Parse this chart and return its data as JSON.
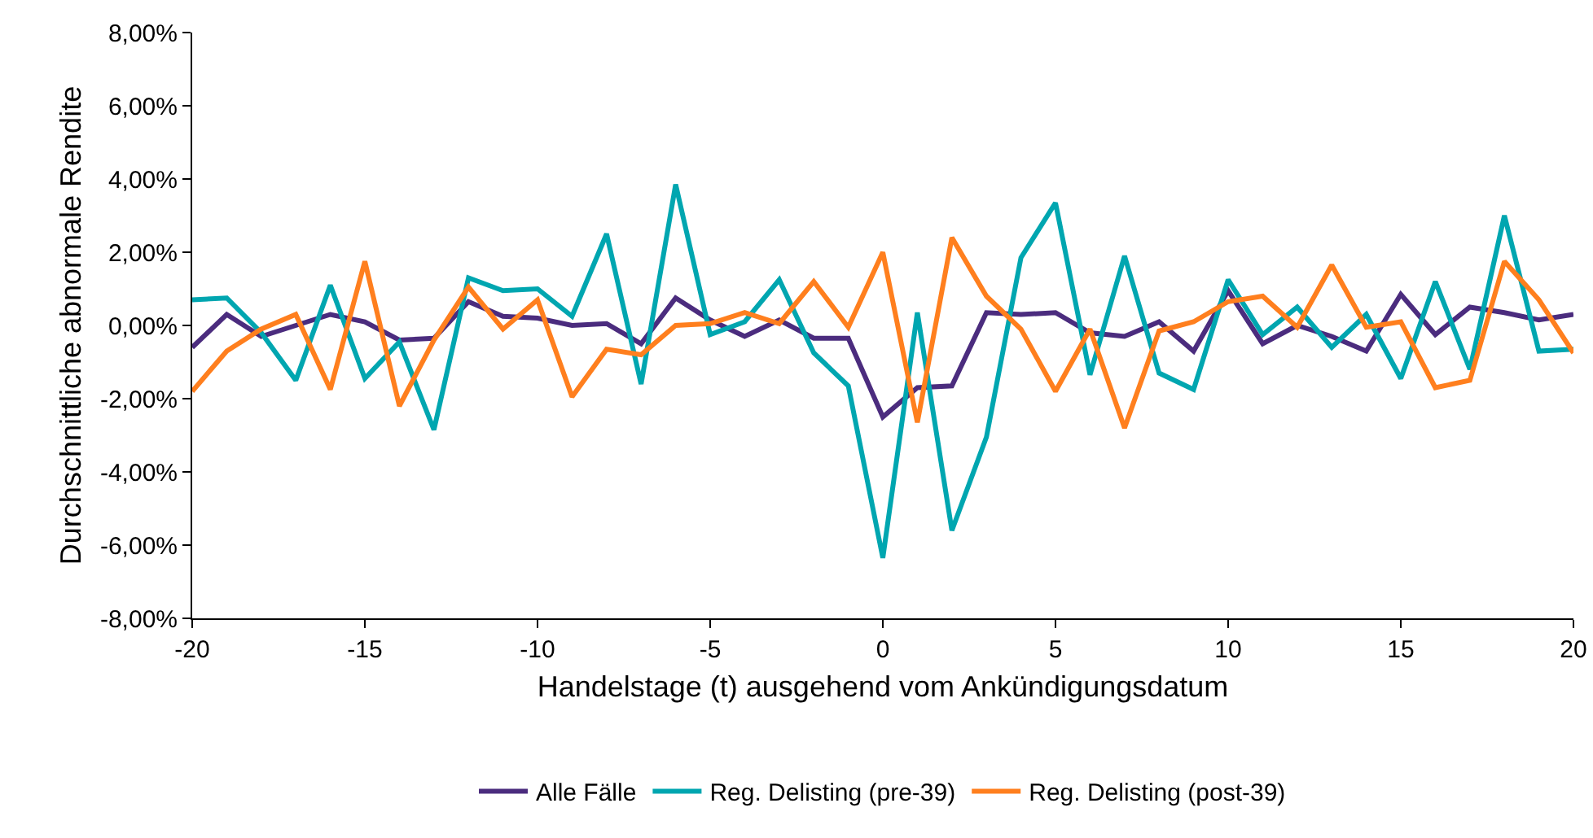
{
  "chart_data": {
    "type": "line",
    "xlabel": "Handelstage (t) ausgehend vom Ankündigungsdatum",
    "ylabel": "Durchschnittliche abnormale Rendite",
    "x": [
      -20,
      -19,
      -18,
      -17,
      -16,
      -15,
      -14,
      -13,
      -12,
      -11,
      -10,
      -9,
      -8,
      -7,
      -6,
      -5,
      -4,
      -3,
      -2,
      -1,
      0,
      1,
      2,
      3,
      4,
      5,
      6,
      7,
      8,
      9,
      10,
      11,
      12,
      13,
      14,
      15,
      16,
      17,
      18,
      19,
      20
    ],
    "series": [
      {
        "name": "Alle Fälle",
        "color": "#4b2c7e",
        "values": [
          -0.6,
          0.3,
          -0.3,
          0.0,
          0.3,
          0.1,
          -0.4,
          -0.35,
          0.65,
          0.25,
          0.2,
          0.0,
          0.05,
          -0.5,
          0.75,
          0.15,
          -0.3,
          0.15,
          -0.35,
          -0.35,
          -2.5,
          -1.7,
          -1.65,
          0.35,
          0.3,
          0.35,
          -0.2,
          -0.3,
          0.1,
          -0.7,
          0.95,
          -0.5,
          0.0,
          -0.3,
          -0.7,
          0.85,
          -0.25,
          0.5,
          0.35,
          0.15,
          0.3
        ]
      },
      {
        "name": "Reg. Delisting (pre-39)",
        "color": "#00a6b0",
        "values": [
          0.7,
          0.75,
          -0.2,
          -1.5,
          1.1,
          -1.45,
          -0.45,
          -2.85,
          1.3,
          0.95,
          1.0,
          0.25,
          2.5,
          -1.6,
          3.85,
          -0.25,
          0.1,
          1.25,
          -0.75,
          -1.65,
          -6.35,
          0.35,
          -5.6,
          -3.05,
          1.85,
          3.35,
          -1.35,
          1.9,
          -1.3,
          -1.75,
          1.25,
          -0.25,
          0.5,
          -0.6,
          0.3,
          -1.45,
          1.2,
          -1.2,
          3.0,
          -0.7,
          -0.65
        ]
      },
      {
        "name": "Reg. Delisting (post-39)",
        "color": "#ff7f1e",
        "values": [
          -1.8,
          -0.7,
          -0.1,
          0.3,
          -1.75,
          1.75,
          -2.2,
          -0.4,
          1.05,
          -0.1,
          0.7,
          -1.95,
          -0.65,
          -0.8,
          0.0,
          0.05,
          0.35,
          0.05,
          1.2,
          -0.05,
          2.0,
          -2.65,
          2.4,
          0.8,
          -0.1,
          -1.8,
          -0.1,
          -2.8,
          -0.15,
          0.1,
          0.65,
          0.8,
          -0.05,
          1.65,
          -0.05,
          0.1,
          -1.7,
          -1.5,
          1.75,
          0.7,
          -0.75
        ]
      }
    ],
    "xlim": [
      -20,
      20
    ],
    "xticks": [
      -20,
      -15,
      -10,
      -5,
      0,
      5,
      10,
      15,
      20
    ],
    "ylim": [
      -8,
      8
    ],
    "yticks": [
      {
        "value": -8,
        "label": "-8,00%"
      },
      {
        "value": -6,
        "label": "-6,00%"
      },
      {
        "value": -4,
        "label": "-4,00%"
      },
      {
        "value": -2,
        "label": "-2,00%"
      },
      {
        "value": 0,
        "label": "0,00%"
      },
      {
        "value": 2,
        "label": "2,00%"
      },
      {
        "value": 4,
        "label": "4,00%"
      },
      {
        "value": 6,
        "label": "6,00%"
      },
      {
        "value": 8,
        "label": "8,00%"
      }
    ],
    "grid": false,
    "legend": "bottom",
    "marker": "none",
    "line_style": "solid"
  }
}
